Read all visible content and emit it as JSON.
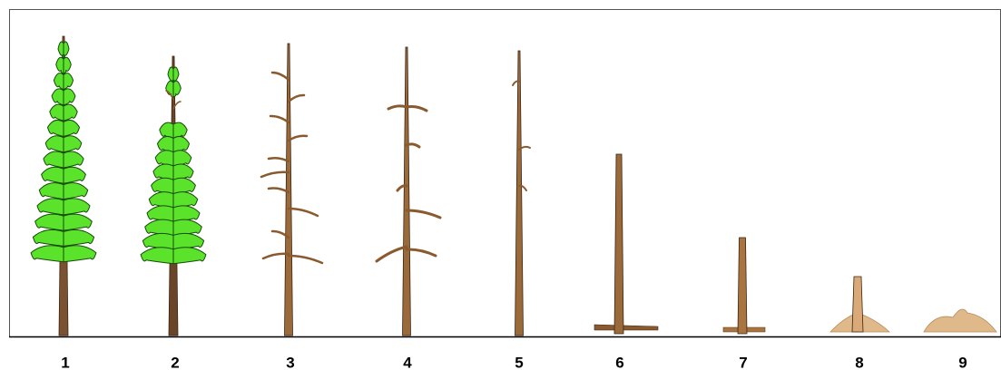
{
  "labels": [
    "1",
    "2",
    "3",
    "4",
    "5",
    "6",
    "7",
    "8",
    "9"
  ]
}
